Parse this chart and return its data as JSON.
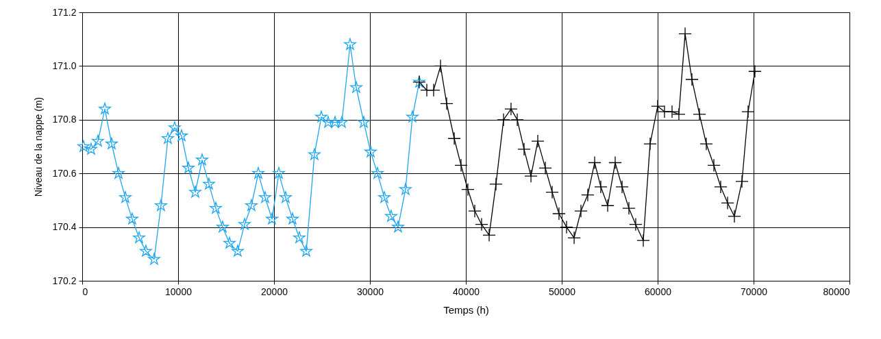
{
  "chart_data": {
    "type": "line",
    "xlabel": "Temps (h)",
    "ylabel": "Niveau de la nappe (m)",
    "xlim": [
      0,
      80000
    ],
    "xticks": [
      0,
      10000,
      20000,
      30000,
      40000,
      50000,
      60000,
      70000,
      80000
    ],
    "ylim": [
      170.2,
      171.2
    ],
    "yticks": [
      170.2,
      170.4,
      170.6,
      170.8,
      {
        "value": 171,
        "label": "171.0"
      },
      171.2
    ],
    "grid": true,
    "line_style": "solid",
    "series": [
      {
        "color": "#1ea6f0",
        "marker": "star",
        "x": [
          140,
          930,
          1640,
          2360,
          3070,
          3790,
          4500,
          5210,
          5930,
          6640,
          7500,
          8210,
          8930,
          9640,
          10360,
          11070,
          11790,
          12500,
          13210,
          13930,
          14640,
          15360,
          16210,
          16930,
          17640,
          18360,
          19070,
          19790,
          20500,
          21210,
          21930,
          22640,
          23360,
          24210,
          24930,
          25640,
          26360,
          27070,
          27930,
          28570,
          29360,
          30070,
          30790,
          31500,
          32210,
          32930,
          33710,
          34430,
          35140
        ],
        "values": [
          170.7,
          170.69,
          170.72,
          170.84,
          170.71,
          170.6,
          170.51,
          170.43,
          170.36,
          170.31,
          170.28,
          170.48,
          170.73,
          170.77,
          170.74,
          170.62,
          170.53,
          170.65,
          170.56,
          170.47,
          170.4,
          170.34,
          170.31,
          170.41,
          170.48,
          170.6,
          170.51,
          170.43,
          170.6,
          170.51,
          170.43,
          170.36,
          170.31,
          170.67,
          170.81,
          170.79,
          170.79,
          170.79,
          171.08,
          170.92,
          170.79,
          170.68,
          170.6,
          170.51,
          170.44,
          170.4,
          170.54,
          170.81,
          170.94
        ]
      },
      {
        "color": "#000000",
        "marker": "cross",
        "x": [
          35140,
          35930,
          36640,
          37360,
          38000,
          38790,
          39500,
          40210,
          40930,
          41640,
          42430,
          43140,
          43930,
          44710,
          45360,
          46070,
          46790,
          47500,
          48290,
          49000,
          49710,
          50500,
          51290,
          52000,
          52710,
          53430,
          54070,
          54790,
          55570,
          56290,
          57000,
          57710,
          58500,
          59210,
          60000,
          60710,
          61500,
          62210,
          62860,
          63570,
          64360,
          65070,
          65860,
          66570,
          67290,
          68000,
          68790,
          69430,
          70140
        ],
        "values": [
          170.94,
          170.91,
          170.91,
          171.0,
          170.86,
          170.73,
          170.63,
          170.54,
          170.46,
          170.41,
          170.37,
          170.56,
          170.8,
          170.84,
          170.8,
          170.69,
          170.59,
          170.72,
          170.62,
          170.53,
          170.45,
          170.4,
          170.36,
          170.46,
          170.52,
          170.64,
          170.55,
          170.48,
          170.64,
          170.55,
          170.47,
          170.41,
          170.35,
          170.71,
          170.85,
          170.83,
          170.83,
          170.82,
          171.12,
          170.95,
          170.82,
          170.71,
          170.63,
          170.55,
          170.49,
          170.44,
          170.57,
          170.83,
          170.98
        ]
      }
    ]
  }
}
